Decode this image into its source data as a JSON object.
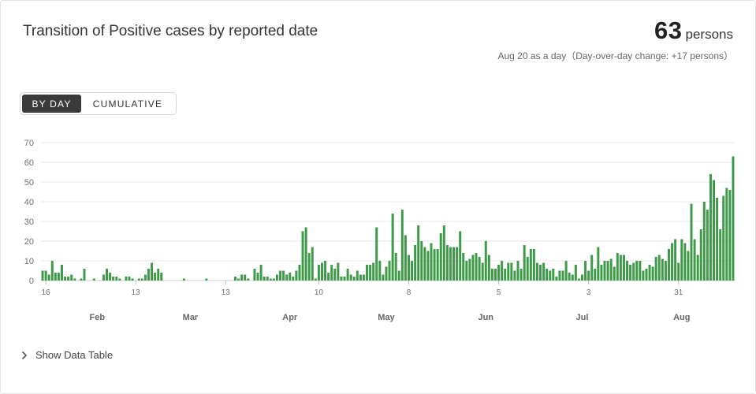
{
  "header": {
    "title": "Transition of Positive cases by reported date",
    "value": "63",
    "unit": "persons",
    "note": "Aug 20 as a day（Day-over-day change: +17 persons）"
  },
  "toggle": {
    "by_day": "BY DAY",
    "cumulative": "CUMULATIVE",
    "selected": "BY DAY"
  },
  "footer": {
    "show_table": "Show Data Table"
  },
  "colors": {
    "bar": "#3e9a48",
    "grid": "#e6e6e6",
    "axis_text": "#707070"
  },
  "chart_data": {
    "type": "bar",
    "title": "Transition of Positive cases by reported date",
    "x_start": "2020-01-15",
    "x_end": "2020-08-20",
    "ylim": [
      0,
      70
    ],
    "yticks": [
      0,
      10,
      20,
      30,
      40,
      50,
      60,
      70
    ],
    "day_ticks": [
      {
        "date": "2020-01-16",
        "label": "16"
      },
      {
        "date": "2020-02-13",
        "label": "13"
      },
      {
        "date": "2020-03-12",
        "label": "13"
      },
      {
        "date": "2020-04-10",
        "label": "10"
      },
      {
        "date": "2020-05-08",
        "label": "8"
      },
      {
        "date": "2020-06-05",
        "label": "5"
      },
      {
        "date": "2020-07-03",
        "label": "3"
      },
      {
        "date": "2020-07-31",
        "label": "31"
      }
    ],
    "month_labels": [
      {
        "date": "2020-02-01",
        "label": "Feb"
      },
      {
        "date": "2020-03-01",
        "label": "Mar"
      },
      {
        "date": "2020-04-01",
        "label": "Apr"
      },
      {
        "date": "2020-05-01",
        "label": "May"
      },
      {
        "date": "2020-06-01",
        "label": "Jun"
      },
      {
        "date": "2020-07-01",
        "label": "Jul"
      },
      {
        "date": "2020-08-01",
        "label": "Aug"
      }
    ],
    "values": [
      5,
      5,
      3,
      10,
      4,
      4,
      8,
      2,
      2,
      3,
      1,
      0,
      1,
      6,
      0,
      0,
      1,
      0,
      0,
      3,
      6,
      4,
      2,
      2,
      1,
      0,
      2,
      2,
      1,
      0,
      1,
      1,
      3,
      6,
      9,
      4,
      6,
      4,
      0,
      0,
      0,
      0,
      0,
      0,
      1,
      0,
      0,
      0,
      0,
      0,
      0,
      1,
      0,
      0,
      0,
      0,
      0,
      0,
      0,
      0,
      2,
      1,
      3,
      3,
      1,
      0,
      6,
      4,
      8,
      2,
      2,
      1,
      1,
      3,
      5,
      5,
      3,
      4,
      2,
      5,
      8,
      25,
      27,
      14,
      17,
      1,
      8,
      9,
      10,
      4,
      8,
      6,
      9,
      2,
      2,
      6,
      3,
      2,
      5,
      3,
      3,
      8,
      8,
      9,
      27,
      10,
      3,
      7,
      10,
      34,
      14,
      5,
      36,
      23,
      13,
      10,
      18,
      28,
      20,
      17,
      15,
      19,
      16,
      16,
      24,
      28,
      18,
      17,
      17,
      17,
      25,
      14,
      10,
      11,
      13,
      14,
      12,
      9,
      20,
      13,
      6,
      6,
      8,
      10,
      6,
      9,
      9,
      5,
      10,
      6,
      18,
      12,
      16,
      16,
      9,
      8,
      9,
      6,
      5,
      6,
      2,
      5,
      5,
      10,
      4,
      3,
      8,
      1,
      3,
      10,
      5,
      13,
      6,
      17,
      8,
      10,
      10,
      11,
      7,
      14,
      13,
      13,
      10,
      8,
      9,
      10,
      10,
      5,
      6,
      8,
      7,
      12,
      13,
      11,
      10,
      16,
      19,
      21,
      9,
      21,
      19,
      15,
      39,
      21,
      13,
      26,
      40,
      36,
      54,
      51,
      42,
      26,
      43,
      47,
      46,
      63
    ]
  }
}
